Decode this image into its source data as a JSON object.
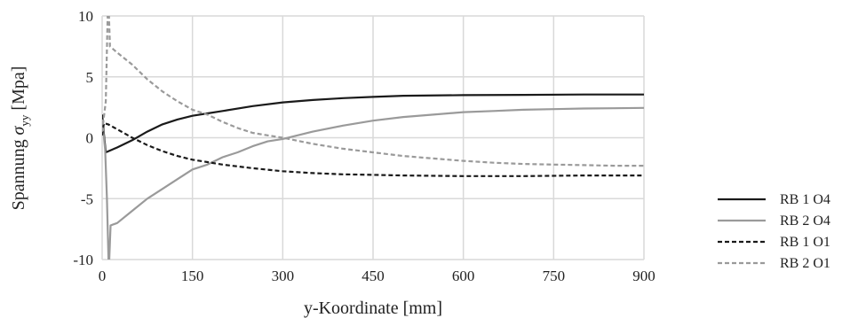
{
  "chart_data": {
    "type": "line",
    "xlabel": "y-Koordinate [mm]",
    "ylabel_prefix": "Spannung ",
    "ylabel_symbol": "σ",
    "ylabel_subscript": "yy",
    "ylabel_suffix": " [Mpa]",
    "xlim": [
      0,
      900
    ],
    "ylim": [
      -10,
      10
    ],
    "xticks": [
      0,
      150,
      300,
      450,
      600,
      750,
      900
    ],
    "xtick_labels": [
      "0",
      "150",
      "300",
      "450",
      "600",
      "750",
      "900"
    ],
    "yticks": [
      -10,
      -5,
      0,
      5,
      10
    ],
    "ytick_labels": [
      "-10",
      "-5",
      "0",
      "5",
      "10"
    ],
    "grid": true,
    "legend_position": "right",
    "series": [
      {
        "name": "RB 1 O4",
        "color": "#1a1a1a",
        "dash": "solid",
        "points": [
          [
            0,
            1.9
          ],
          [
            3,
            0.3
          ],
          [
            6,
            -1.2
          ],
          [
            25,
            -0.8
          ],
          [
            50,
            -0.2
          ],
          [
            75,
            0.5
          ],
          [
            100,
            1.1
          ],
          [
            125,
            1.5
          ],
          [
            150,
            1.8
          ],
          [
            175,
            2.0
          ],
          [
            200,
            2.2
          ],
          [
            250,
            2.6
          ],
          [
            300,
            2.9
          ],
          [
            350,
            3.1
          ],
          [
            400,
            3.25
          ],
          [
            450,
            3.35
          ],
          [
            500,
            3.45
          ],
          [
            600,
            3.5
          ],
          [
            700,
            3.52
          ],
          [
            800,
            3.55
          ],
          [
            900,
            3.55
          ]
        ]
      },
      {
        "name": "RB 2 O4",
        "color": "#9a9a9a",
        "dash": "solid",
        "points": [
          [
            0,
            1.5
          ],
          [
            5,
            -1.0
          ],
          [
            8,
            -5.0
          ],
          [
            11,
            -11.0
          ],
          [
            14,
            -7.2
          ],
          [
            25,
            -7.0
          ],
          [
            50,
            -6.0
          ],
          [
            75,
            -5.0
          ],
          [
            100,
            -4.2
          ],
          [
            125,
            -3.4
          ],
          [
            150,
            -2.6
          ],
          [
            175,
            -2.2
          ],
          [
            200,
            -1.6
          ],
          [
            225,
            -1.2
          ],
          [
            250,
            -0.7
          ],
          [
            275,
            -0.3
          ],
          [
            300,
            -0.1
          ],
          [
            350,
            0.5
          ],
          [
            400,
            1.0
          ],
          [
            450,
            1.4
          ],
          [
            500,
            1.7
          ],
          [
            550,
            1.9
          ],
          [
            600,
            2.1
          ],
          [
            650,
            2.2
          ],
          [
            700,
            2.3
          ],
          [
            750,
            2.35
          ],
          [
            800,
            2.4
          ],
          [
            850,
            2.42
          ],
          [
            900,
            2.45
          ]
        ]
      },
      {
        "name": "RB 1 O1",
        "color": "#1a1a1a",
        "dash": "dashed",
        "points": [
          [
            0,
            0.2
          ],
          [
            3,
            1.2
          ],
          [
            10,
            1.1
          ],
          [
            25,
            0.7
          ],
          [
            50,
            0.0
          ],
          [
            75,
            -0.6
          ],
          [
            100,
            -1.1
          ],
          [
            125,
            -1.5
          ],
          [
            150,
            -1.8
          ],
          [
            175,
            -2.0
          ],
          [
            200,
            -2.2
          ],
          [
            250,
            -2.5
          ],
          [
            300,
            -2.75
          ],
          [
            350,
            -2.9
          ],
          [
            400,
            -3.0
          ],
          [
            450,
            -3.05
          ],
          [
            500,
            -3.1
          ],
          [
            600,
            -3.15
          ],
          [
            700,
            -3.15
          ],
          [
            800,
            -3.1
          ],
          [
            900,
            -3.1
          ]
        ]
      },
      {
        "name": "RB 2 O1",
        "color": "#9a9a9a",
        "dash": "dashed",
        "points": [
          [
            0,
            0.5
          ],
          [
            6,
            3.0
          ],
          [
            10,
            12.0
          ],
          [
            13,
            7.5
          ],
          [
            25,
            7.0
          ],
          [
            50,
            6.0
          ],
          [
            75,
            4.8
          ],
          [
            100,
            3.8
          ],
          [
            125,
            3.0
          ],
          [
            150,
            2.3
          ],
          [
            175,
            1.9
          ],
          [
            200,
            1.3
          ],
          [
            225,
            0.8
          ],
          [
            250,
            0.4
          ],
          [
            275,
            0.2
          ],
          [
            300,
            0.0
          ],
          [
            350,
            -0.5
          ],
          [
            400,
            -0.9
          ],
          [
            450,
            -1.2
          ],
          [
            500,
            -1.5
          ],
          [
            550,
            -1.7
          ],
          [
            600,
            -1.9
          ],
          [
            650,
            -2.05
          ],
          [
            700,
            -2.15
          ],
          [
            750,
            -2.2
          ],
          [
            800,
            -2.25
          ],
          [
            850,
            -2.3
          ],
          [
            900,
            -2.3
          ]
        ]
      }
    ]
  }
}
